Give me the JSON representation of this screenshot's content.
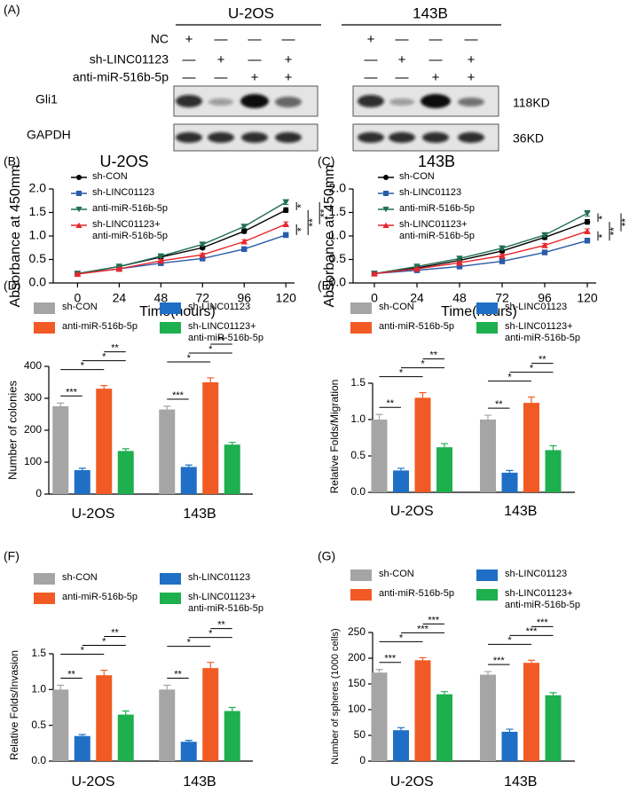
{
  "blot": {
    "panel": "(A)",
    "groups": [
      "U-2OS",
      "143B"
    ],
    "conditions": [
      "NC",
      "sh-LINC01123",
      "anti-miR-516b-5p"
    ],
    "signs": [
      [
        [
          "+",
          "—",
          "—",
          "—"
        ],
        [
          "—",
          "+",
          "—",
          "+"
        ],
        [
          "—",
          "—",
          "+",
          "+"
        ]
      ],
      [
        [
          "+",
          "—",
          "—",
          "—"
        ],
        [
          "—",
          "+",
          "—",
          "+"
        ],
        [
          "—",
          "—",
          "+",
          "+"
        ]
      ]
    ],
    "proteins": [
      "Gli1",
      "GAPDH"
    ],
    "sizes": [
      "118KD",
      "36KD"
    ]
  },
  "chart_data": [
    {
      "type": "line",
      "panel": "(B)",
      "title": "U-2OS",
      "x_label": "Time(hours)",
      "y_label": "Absorbance at 450mm",
      "x": [
        0,
        24,
        48,
        72,
        96,
        120
      ],
      "xlim": [
        -14,
        125
      ],
      "xticks": [
        0,
        24,
        48,
        72,
        96,
        120
      ],
      "ylim": [
        0,
        2
      ],
      "yticks": [
        {
          "value": 0,
          "label": "0.0"
        },
        {
          "value": 0.5,
          "label": "0.5"
        },
        {
          "value": 1,
          "label": "1.0"
        },
        {
          "value": 1.5,
          "label": "1.5"
        },
        {
          "value": 2,
          "label": "2.0"
        }
      ],
      "series": [
        {
          "name": "sh-CON",
          "color": "#000000",
          "marker": "circle",
          "values": [
            0.2,
            0.35,
            0.55,
            0.75,
            1.1,
            1.55
          ],
          "errors": [
            0.02,
            0.02,
            0.03,
            0.03,
            0.04,
            0.05
          ]
        },
        {
          "name": "sh-LINC01123",
          "color": "#2a5caa",
          "marker": "square",
          "values": [
            0.2,
            0.3,
            0.42,
            0.52,
            0.72,
            1.02
          ],
          "errors": [
            0.02,
            0.02,
            0.02,
            0.03,
            0.04,
            0.05
          ]
        },
        {
          "name": "anti-miR-516b-5p",
          "color": "#226f54",
          "marker": "triangle-down",
          "values": [
            0.2,
            0.35,
            0.57,
            0.82,
            1.2,
            1.72
          ],
          "errors": [
            0.02,
            0.02,
            0.03,
            0.03,
            0.04,
            0.05
          ]
        },
        {
          "name": "sh-LINC01123+\nanti-miR-516b-5p",
          "color": "#e8262b",
          "marker": "triangle-up",
          "values": [
            0.19,
            0.3,
            0.47,
            0.6,
            0.88,
            1.25
          ],
          "errors": [
            0.02,
            0.02,
            0.03,
            0.03,
            0.04,
            0.05
          ]
        }
      ],
      "comparisons": [
        [
          2,
          0
        ],
        [
          3,
          1
        ],
        [
          0,
          1
        ],
        [
          2,
          3
        ]
      ],
      "significance": [
        "*",
        "*",
        "**",
        "**"
      ]
    },
    {
      "type": "line",
      "panel": "(C)",
      "title": "143B",
      "x_label": "Time(hours)",
      "y_label": "Absorbance at 450mm",
      "x": [
        0,
        24,
        48,
        72,
        96,
        120
      ],
      "xlim": [
        -12,
        125
      ],
      "xticks": [
        0,
        24,
        48,
        72,
        96,
        120
      ],
      "ylim": [
        0,
        2
      ],
      "yticks": [
        {
          "value": 0,
          "label": "0.0"
        },
        {
          "value": 0.5,
          "label": "0.5"
        },
        {
          "value": 1,
          "label": "1.0"
        },
        {
          "value": 1.5,
          "label": "1.5"
        },
        {
          "value": 2,
          "label": "2.0"
        }
      ],
      "series": [
        {
          "name": "sh-CON",
          "color": "#000000",
          "marker": "circle",
          "values": [
            0.2,
            0.32,
            0.48,
            0.68,
            0.97,
            1.3
          ],
          "errors": [
            0.02,
            0.02,
            0.03,
            0.03,
            0.04,
            0.05
          ]
        },
        {
          "name": "sh-LINC01123",
          "color": "#2a5caa",
          "marker": "square",
          "values": [
            0.2,
            0.27,
            0.35,
            0.46,
            0.65,
            0.9
          ],
          "errors": [
            0.02,
            0.02,
            0.03,
            0.04,
            0.04,
            0.05
          ]
        },
        {
          "name": "anti-miR-516b-5p",
          "color": "#226f54",
          "marker": "triangle-down",
          "values": [
            0.2,
            0.35,
            0.52,
            0.74,
            1.02,
            1.48
          ],
          "errors": [
            0.02,
            0.03,
            0.04,
            0.04,
            0.04,
            0.06
          ]
        },
        {
          "name": "sh-LINC01123+\nanti-miR-516b-5p",
          "color": "#e8262b",
          "marker": "triangle-up",
          "values": [
            0.2,
            0.3,
            0.43,
            0.58,
            0.8,
            1.1
          ],
          "errors": [
            0.02,
            0.02,
            0.03,
            0.03,
            0.04,
            0.05
          ]
        }
      ],
      "comparisons": [
        [
          2,
          0
        ],
        [
          3,
          1
        ],
        [
          0,
          1
        ],
        [
          2,
          3
        ]
      ],
      "significance": [
        "*",
        "*",
        "**",
        "**"
      ]
    },
    {
      "type": "bar",
      "panel": "(D)",
      "y_label": "Number of colonies",
      "categories": [
        "U-2OS",
        "143B"
      ],
      "ylim": [
        0,
        400
      ],
      "yticks": [
        0,
        100,
        200,
        300,
        400
      ],
      "series": [
        {
          "name": "sh-CON",
          "color": "#a5a5a5",
          "values": [
            275,
            265
          ],
          "errors": [
            10,
            10
          ]
        },
        {
          "name": "sh-LINC01123",
          "color": "#1f6fc6",
          "values": [
            75,
            85
          ],
          "errors": [
            6,
            6
          ]
        },
        {
          "name": "anti-miR-516b-5p",
          "color": "#f15a24",
          "values": [
            330,
            350
          ],
          "errors": [
            10,
            14
          ]
        },
        {
          "name": "sh-LINC01123+\nanti-miR-516b-5p",
          "color": "#1eaf4e",
          "values": [
            135,
            155
          ],
          "errors": [
            7,
            7
          ]
        }
      ],
      "comparisons": [
        [
          0,
          1
        ],
        [
          0,
          2
        ],
        [
          1,
          3
        ],
        [
          2,
          3
        ]
      ],
      "significance": [
        [
          "***",
          "*",
          "*",
          "**"
        ],
        [
          "***",
          "*",
          "*",
          "**"
        ]
      ]
    },
    {
      "type": "bar",
      "panel": "(E)",
      "y_label": "Relative Folds/Migration",
      "categories": [
        "U-2OS",
        "143B"
      ],
      "ylim": [
        0,
        1.5
      ],
      "yticks": [
        {
          "value": 0,
          "label": "0.0"
        },
        {
          "value": 0.5,
          "label": "0.5"
        },
        {
          "value": 1,
          "label": "1.0"
        },
        {
          "value": 1.5,
          "label": "1.5"
        }
      ],
      "series": [
        {
          "name": "sh-CON",
          "color": "#a5a5a5",
          "values": [
            1,
            1
          ],
          "errors": [
            0.07,
            0.06
          ]
        },
        {
          "name": "sh-LINC01123",
          "color": "#1f6fc6",
          "values": [
            0.3,
            0.27
          ],
          "errors": [
            0.03,
            0.03
          ]
        },
        {
          "name": "anti-miR-516b-5p",
          "color": "#f15a24",
          "values": [
            1.3,
            1.23
          ],
          "errors": [
            0.07,
            0.08
          ]
        },
        {
          "name": "sh-LINC01123+\nanti-miR-516b-5p",
          "color": "#1eaf4e",
          "values": [
            0.62,
            0.58
          ],
          "errors": [
            0.05,
            0.06
          ]
        }
      ],
      "comparisons": [
        [
          0,
          1
        ],
        [
          0,
          2
        ],
        [
          1,
          3
        ],
        [
          2,
          3
        ]
      ],
      "significance": [
        [
          "**",
          "*",
          "*",
          "**"
        ],
        [
          "**",
          "*",
          "*",
          "**"
        ]
      ]
    },
    {
      "type": "bar",
      "panel": "(F)",
      "y_label": "Relative Folds/Invasion",
      "categories": [
        "U-2OS",
        "143B"
      ],
      "ylim": [
        0,
        1.5
      ],
      "yticks": [
        {
          "value": 0,
          "label": "0.0"
        },
        {
          "value": 0.5,
          "label": "0.5"
        },
        {
          "value": 1,
          "label": "1.0"
        },
        {
          "value": 1.5,
          "label": "1.5"
        }
      ],
      "series": [
        {
          "name": "sh-CON",
          "color": "#a5a5a5",
          "values": [
            1,
            1
          ],
          "errors": [
            0.06,
            0.06
          ]
        },
        {
          "name": "sh-LINC01123",
          "color": "#1f6fc6",
          "values": [
            0.35,
            0.27
          ],
          "errors": [
            0.02,
            0.02
          ]
        },
        {
          "name": "anti-miR-516b-5p",
          "color": "#f15a24",
          "values": [
            1.2,
            1.3
          ],
          "errors": [
            0.07,
            0.08
          ]
        },
        {
          "name": "sh-LINC01123+\nanti-miR-516b-5p",
          "color": "#1eaf4e",
          "values": [
            0.65,
            0.7
          ],
          "errors": [
            0.05,
            0.05
          ]
        }
      ],
      "comparisons": [
        [
          0,
          1
        ],
        [
          0,
          2
        ],
        [
          1,
          3
        ],
        [
          2,
          3
        ]
      ],
      "significance": [
        [
          "**",
          "*",
          "*",
          "**"
        ],
        [
          "**",
          "*",
          "*",
          "**"
        ]
      ]
    },
    {
      "type": "bar",
      "panel": "(G)",
      "y_label": "Number of  spheres (1000 cells)",
      "categories": [
        "U-2OS",
        "143B"
      ],
      "ylim": [
        0,
        250
      ],
      "yticks": [
        0,
        50,
        100,
        150,
        200,
        250
      ],
      "series": [
        {
          "name": "sh-CON",
          "color": "#a5a5a5",
          "values": [
            172,
            168
          ],
          "errors": [
            6,
            6
          ]
        },
        {
          "name": "sh-LINC01123",
          "color": "#1f6fc6",
          "values": [
            60,
            57
          ],
          "errors": [
            5,
            5
          ]
        },
        {
          "name": "anti-miR-516b-5p",
          "color": "#f15a24",
          "values": [
            196,
            191
          ],
          "errors": [
            5,
            5
          ]
        },
        {
          "name": "sh-LINC01123+\nanti-miR-516b-5p",
          "color": "#1eaf4e",
          "values": [
            130,
            128
          ],
          "errors": [
            5,
            5
          ]
        }
      ],
      "comparisons": [
        [
          0,
          1
        ],
        [
          0,
          2
        ],
        [
          1,
          3
        ],
        [
          2,
          3
        ]
      ],
      "significance": [
        [
          "***",
          "*",
          "***",
          "***"
        ],
        [
          "***",
          "*",
          "***",
          "***"
        ]
      ]
    }
  ]
}
